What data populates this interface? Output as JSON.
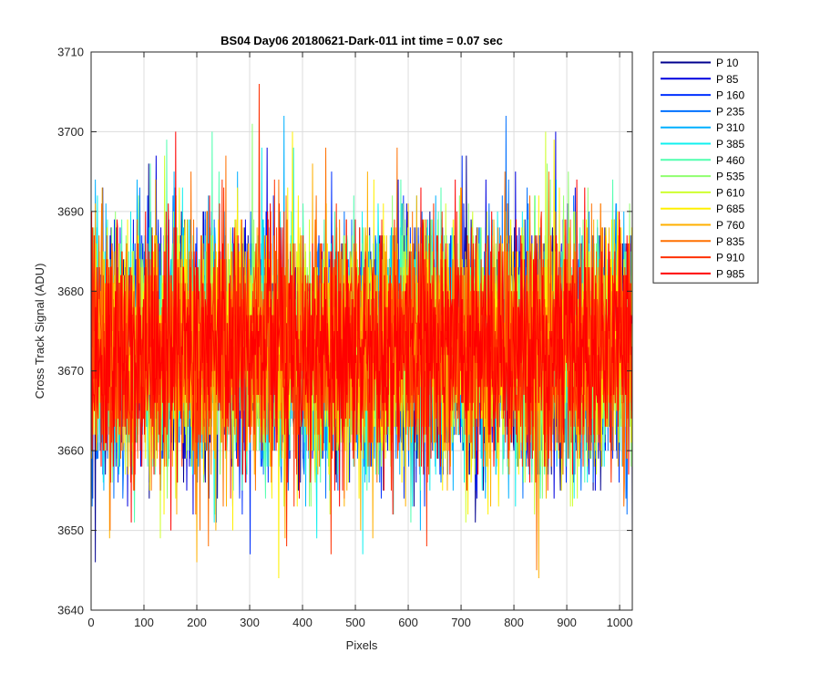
{
  "chart_data": {
    "type": "line",
    "title": "BS04 Day06 20180621-Dark-011 int time = 0.07 sec",
    "xlabel": "Pixels",
    "ylabel": "Cross Track Signal (ADU)",
    "xlim": [
      0,
      1024
    ],
    "ylim": [
      3640,
      3710
    ],
    "xticks": [
      0,
      100,
      200,
      300,
      400,
      500,
      600,
      700,
      800,
      900,
      1000
    ],
    "yticks": [
      3640,
      3650,
      3660,
      3670,
      3680,
      3690,
      3700,
      3710
    ],
    "grid": true,
    "legend_location": "outside-top-right",
    "x": {
      "start": 1,
      "end": 1024,
      "step": 1
    },
    "series_profile": {
      "mean": 3673,
      "std": 7.5,
      "min_observed": 3644,
      "max_observed": 3706
    },
    "series": [
      {
        "name": "P 10",
        "color": "#00008F"
      },
      {
        "name": "P 85",
        "color": "#0000DF"
      },
      {
        "name": "P 160",
        "color": "#0030FF"
      },
      {
        "name": "P 235",
        "color": "#0070FF"
      },
      {
        "name": "P 310",
        "color": "#00B0FF"
      },
      {
        "name": "P 385",
        "color": "#10F0EF"
      },
      {
        "name": "P 460",
        "color": "#50FFAF"
      },
      {
        "name": "P 535",
        "color": "#90FF6F"
      },
      {
        "name": "P 610",
        "color": "#CFFF30"
      },
      {
        "name": "P 685",
        "color": "#FFF000"
      },
      {
        "name": "P 760",
        "color": "#FFB000"
      },
      {
        "name": "P 835",
        "color": "#FF7000"
      },
      {
        "name": "P 910",
        "color": "#FF3000"
      },
      {
        "name": "P 985",
        "color": "#FF0000"
      }
    ],
    "highlights": [
      {
        "series": "P 910",
        "x": 318,
        "y": 3706
      },
      {
        "series": "P 535",
        "x": 305,
        "y": 3701
      },
      {
        "series": "P 310",
        "x": 365,
        "y": 3702
      },
      {
        "series": "P 235",
        "x": 785,
        "y": 3702
      },
      {
        "series": "P 985",
        "x": 160,
        "y": 3700
      },
      {
        "series": "P 610",
        "x": 860,
        "y": 3700
      },
      {
        "series": "P 685",
        "x": 355,
        "y": 3644
      },
      {
        "series": "P 760",
        "x": 847,
        "y": 3644
      },
      {
        "series": "P 835",
        "x": 843,
        "y": 3645
      },
      {
        "series": "P 10",
        "x": 8,
        "y": 3646
      },
      {
        "series": "P 760",
        "x": 200,
        "y": 3646
      }
    ]
  }
}
